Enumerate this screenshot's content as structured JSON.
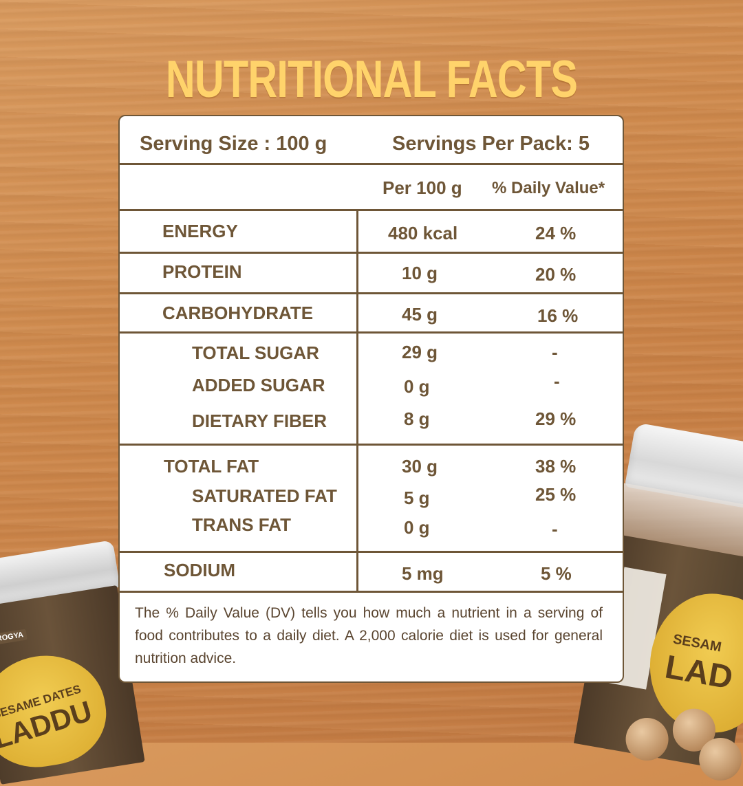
{
  "title": "NUTRITIONAL FACTS",
  "serving": {
    "size_label": "Serving Size : 100 g",
    "per_pack_label": "Servings Per Pack: 5"
  },
  "columns": {
    "per_100g": "Per 100 g",
    "daily_value": "% Daily Value*"
  },
  "rows": [
    {
      "name": "ENERGY",
      "amount": "480 kcal",
      "dv": "24 %"
    },
    {
      "name": "PROTEIN",
      "amount": "10 g",
      "dv": "20 %"
    },
    {
      "name": "CARBOHYDRATE",
      "amount": "45 g",
      "dv": "16 %"
    },
    {
      "name": "TOTAL SUGAR",
      "amount": "29 g",
      "dv": "-"
    },
    {
      "name": "ADDED SUGAR",
      "amount": "0 g",
      "dv": "-"
    },
    {
      "name": "DIETARY FIBER",
      "amount": "8 g",
      "dv": "29 %"
    },
    {
      "name": "TOTAL FAT",
      "amount": "30 g",
      "dv": "38 %"
    },
    {
      "name": "SATURATED FAT",
      "amount": "5 g",
      "dv": "25 %"
    },
    {
      "name": "TRANS FAT",
      "amount": "0 g",
      "dv": "-"
    },
    {
      "name": "SODIUM",
      "amount": "5 mg",
      "dv": "5 %"
    }
  ],
  "footnote": "The % Daily Value (DV) tells you how much a nutrient in a serving of food contributes to a daily diet. A 2,000 calorie diet is used for general nutrition advice.",
  "product": {
    "brand": "AAROGYA",
    "name_line1": "SESAME DATES",
    "name_line2": "LADDU",
    "right_name_line1": "SESAM",
    "right_name_line2": "LAD"
  },
  "colors": {
    "title": "#ffd36b",
    "text": "#6e5637",
    "card": "#ffffff",
    "background": "#cf8a4d"
  }
}
